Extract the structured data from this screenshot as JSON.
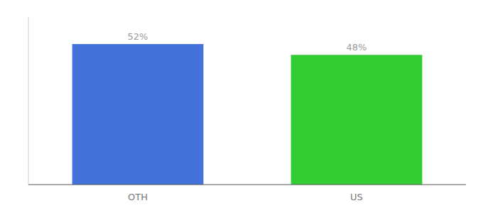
{
  "chart_data": {
    "type": "bar",
    "categories": [
      "OTH",
      "US"
    ],
    "values": [
      52,
      48
    ],
    "value_labels": [
      "52%",
      "48%"
    ],
    "colors": [
      "#4472db",
      "#33cc33"
    ],
    "ylim": [
      0,
      62
    ],
    "data_labels": true,
    "tick_labels": "x"
  }
}
